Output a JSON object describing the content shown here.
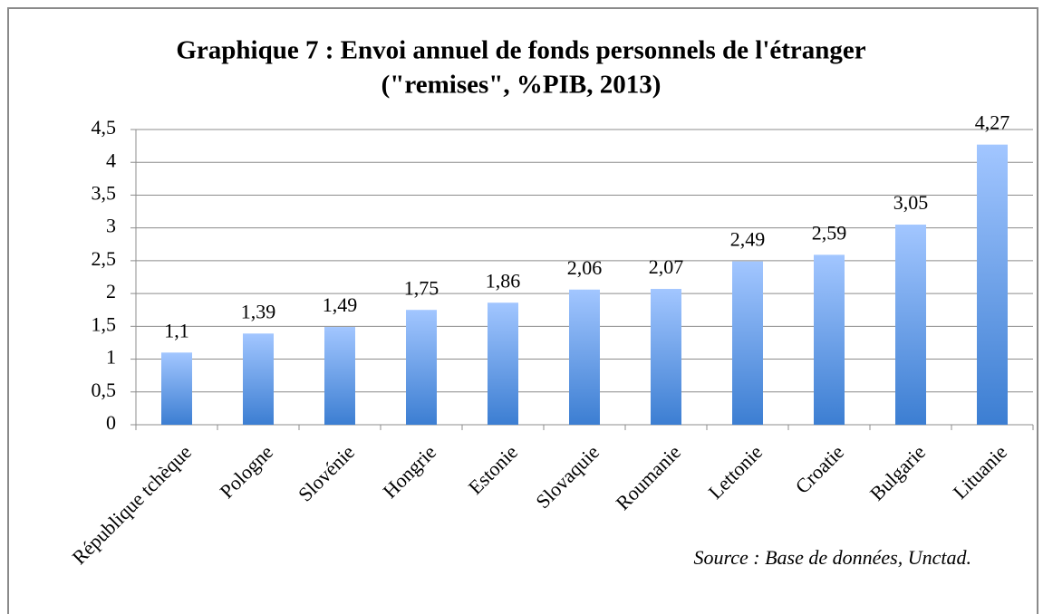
{
  "chart_data": {
    "type": "bar",
    "title": [
      "Graphique 7 : Envoi annuel de fonds personnels de l'étranger",
      "(\"remises\", %PIB, 2013)"
    ],
    "categories": [
      "République tchèque",
      "Pologne",
      "Slovénie",
      "Hongrie",
      "Estonie",
      "Slovaquie",
      "Roumanie",
      "Lettonie",
      "Croatie",
      "Bulgarie",
      "Lituanie"
    ],
    "values": [
      1.1,
      1.39,
      1.49,
      1.75,
      1.86,
      2.06,
      2.07,
      2.49,
      2.59,
      3.05,
      4.27
    ],
    "value_labels": [
      "1,1",
      "1,39",
      "1,49",
      "1,75",
      "1,86",
      "2,06",
      "2,07",
      "2,49",
      "2,59",
      "3,05",
      "4,27"
    ],
    "color": "#6fa3ea",
    "ylim": [
      0,
      4.5
    ],
    "yticks": [
      0,
      {
        "value": 0.5,
        "label": "0,5"
      },
      1,
      {
        "value": 1.5,
        "label": "1,5"
      },
      2,
      {
        "value": 2.5,
        "label": "2,5"
      },
      3,
      {
        "value": 3.5,
        "label": "3,5"
      },
      4,
      {
        "value": 4.5,
        "label": "4,5"
      }
    ],
    "grid": true,
    "annotation": "Source : Base de données, Unctad."
  }
}
